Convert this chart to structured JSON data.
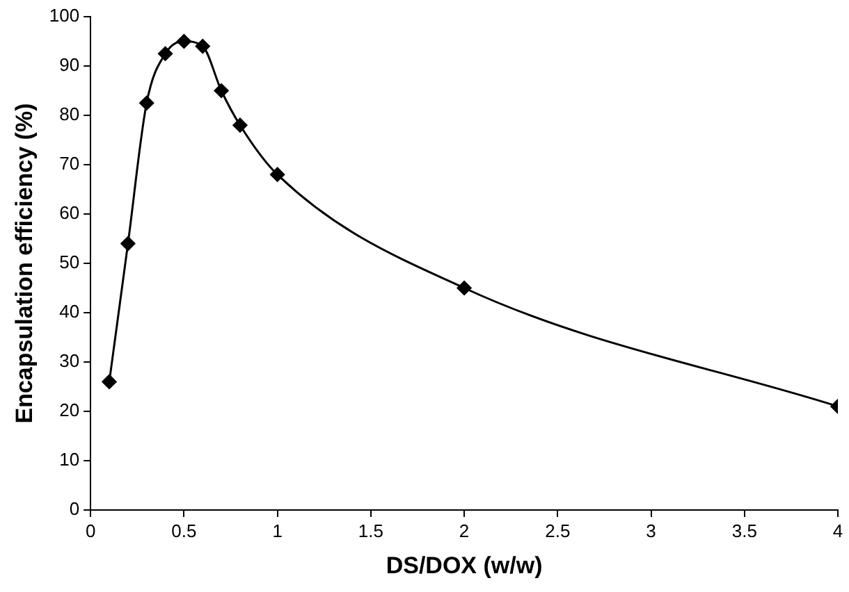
{
  "chart_data": {
    "type": "line",
    "xlabel": "DS/DOX (w/w)",
    "ylabel": "Encapsulation efficiency (%)",
    "x": [
      0.1,
      0.2,
      0.3,
      0.4,
      0.5,
      0.6,
      0.7,
      0.8,
      1,
      2,
      4
    ],
    "series": [
      {
        "color": "#000000",
        "values": [
          26,
          54,
          82.5,
          92.5,
          95,
          94,
          85,
          78,
          68,
          45,
          21
        ]
      }
    ],
    "xlim": [
      0,
      4
    ],
    "xticks": [
      0,
      0.5,
      1,
      1.5,
      2,
      2.5,
      3,
      3.5,
      4
    ],
    "ylim": [
      0,
      100
    ],
    "yticks": [
      0,
      10,
      20,
      30,
      40,
      50,
      60,
      70,
      80,
      90,
      100
    ],
    "grid": false,
    "legend": false,
    "marker": "diamond",
    "line_style": "solid"
  }
}
